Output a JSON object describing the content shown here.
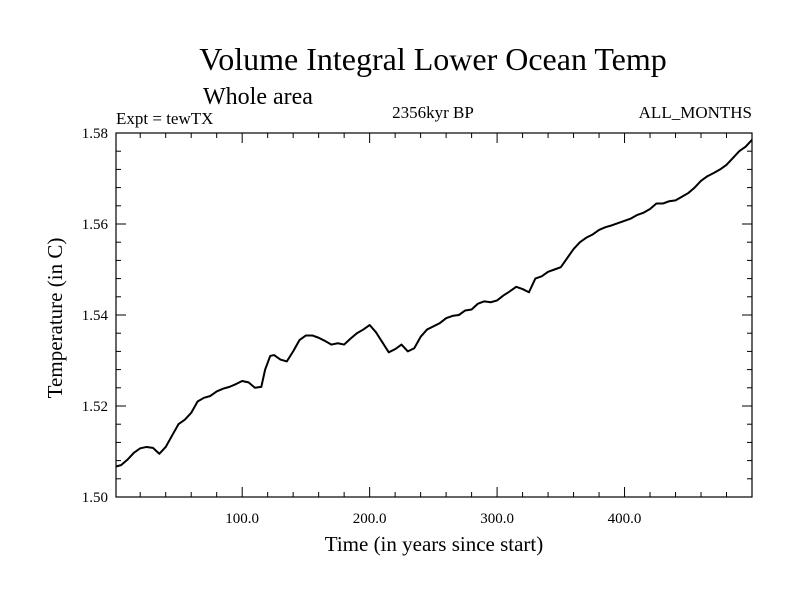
{
  "chart_data": {
    "type": "line",
    "title": "Volume Integral Lower Ocean Temp",
    "subtitle": "Whole area",
    "annotations": {
      "left": "Expt = tewTX",
      "center": "2356kyr BP",
      "right": "ALL_MONTHS"
    },
    "xlabel": "Time (in years since start)",
    "ylabel": "Temperature (in C)",
    "xlim": [
      1,
      500
    ],
    "ylim": [
      1.5,
      1.58
    ],
    "x_ticks": [
      {
        "value": 100,
        "label": "100.0"
      },
      {
        "value": 200,
        "label": "200.0"
      },
      {
        "value": 300,
        "label": "300.0"
      },
      {
        "value": 400,
        "label": "400.0"
      }
    ],
    "y_ticks": [
      {
        "value": 1.5,
        "label": "1.50"
      },
      {
        "value": 1.52,
        "label": "1.52"
      },
      {
        "value": 1.54,
        "label": "1.54"
      },
      {
        "value": 1.56,
        "label": "1.56"
      },
      {
        "value": 1.58,
        "label": "1.58"
      }
    ],
    "grid": false,
    "legend": "none",
    "series": [
      {
        "name": "Volume Integral Lower Ocean Temp",
        "x": [
          1,
          5,
          10,
          15,
          20,
          25,
          30,
          35,
          40,
          45,
          50,
          55,
          60,
          65,
          70,
          75,
          80,
          85,
          90,
          95,
          100,
          105,
          110,
          115,
          118,
          122,
          125,
          130,
          135,
          140,
          145,
          150,
          155,
          160,
          165,
          170,
          175,
          180,
          185,
          190,
          195,
          200,
          205,
          210,
          215,
          220,
          225,
          230,
          235,
          240,
          245,
          250,
          255,
          260,
          265,
          270,
          275,
          280,
          285,
          290,
          295,
          300,
          305,
          310,
          315,
          320,
          325,
          330,
          335,
          340,
          345,
          350,
          355,
          360,
          365,
          370,
          375,
          380,
          385,
          390,
          395,
          400,
          405,
          410,
          415,
          420,
          425,
          430,
          435,
          440,
          445,
          450,
          455,
          460,
          465,
          470,
          475,
          480,
          485,
          490,
          495,
          500
        ],
        "values": [
          1.5067,
          1.507,
          1.5082,
          1.5097,
          1.5107,
          1.511,
          1.5108,
          1.5095,
          1.511,
          1.5135,
          1.516,
          1.517,
          1.5185,
          1.521,
          1.5218,
          1.5222,
          1.5232,
          1.5238,
          1.5242,
          1.5248,
          1.5255,
          1.5252,
          1.524,
          1.5242,
          1.528,
          1.531,
          1.5312,
          1.5302,
          1.5298,
          1.532,
          1.5345,
          1.5355,
          1.5355,
          1.535,
          1.5343,
          1.5335,
          1.5338,
          1.5335,
          1.5348,
          1.536,
          1.5368,
          1.5378,
          1.5362,
          1.534,
          1.5318,
          1.5325,
          1.5335,
          1.532,
          1.5327,
          1.5352,
          1.5368,
          1.5375,
          1.5382,
          1.5393,
          1.5398,
          1.54,
          1.541,
          1.5412,
          1.5425,
          1.543,
          1.5428,
          1.5432,
          1.5443,
          1.5452,
          1.5462,
          1.5457,
          1.545,
          1.548,
          1.5485,
          1.5495,
          1.55,
          1.5505,
          1.5525,
          1.5545,
          1.556,
          1.557,
          1.5577,
          1.5587,
          1.5593,
          1.5597,
          1.5602,
          1.5607,
          1.5612,
          1.562,
          1.5625,
          1.5633,
          1.5645,
          1.5645,
          1.565,
          1.5652,
          1.566,
          1.5668,
          1.568,
          1.5695,
          1.5705,
          1.5712,
          1.572,
          1.573,
          1.5745,
          1.576,
          1.577,
          1.5785
        ]
      }
    ]
  },
  "colors": {
    "background": "#ffffff",
    "foreground": "#000000"
  }
}
